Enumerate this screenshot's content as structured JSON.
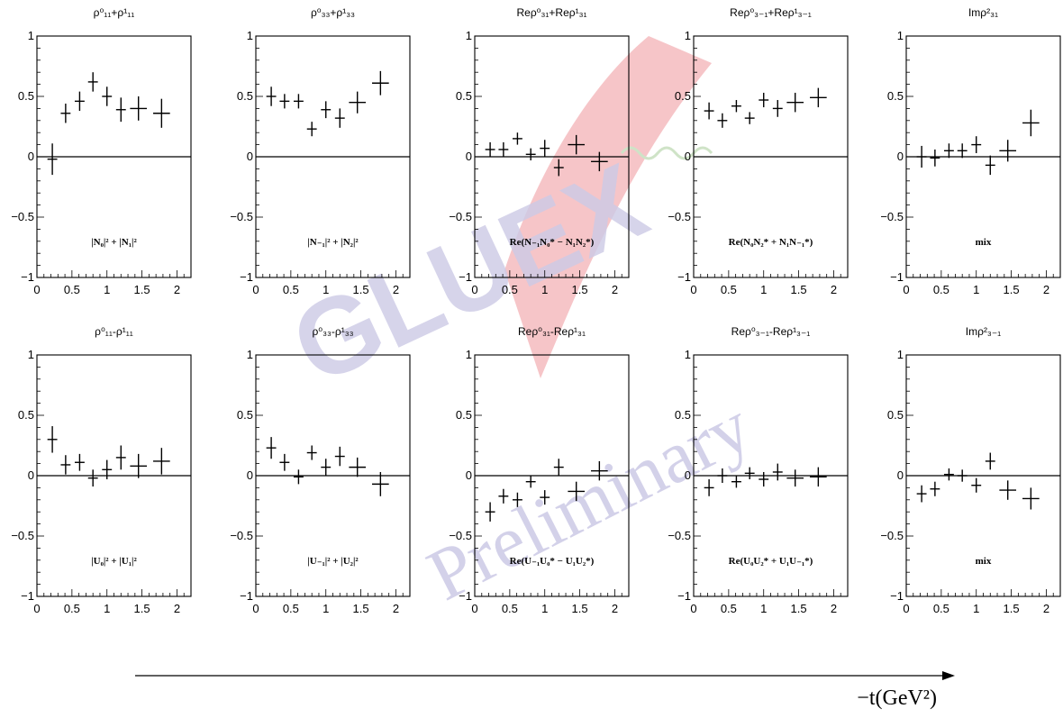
{
  "x_axis_label": "−t(GeV²)",
  "watermark": {
    "logo_text": "GLUEX",
    "text": "Preliminary"
  },
  "axis": {
    "xlim": [
      0,
      2.2
    ],
    "ylim": [
      -1,
      1
    ],
    "x_tick_labels": [
      "0",
      "0.5",
      "1",
      "1.5",
      "2"
    ],
    "y_tick_labels": [
      "−1",
      "−0.5",
      "0",
      "0.5",
      "1"
    ]
  },
  "chart_data": [
    {
      "type": "scatter",
      "title": "ρ⁰₁₁+ρ¹₁₁",
      "annotation": "|N₀|² + |N₁|²",
      "zero_line": true,
      "points": [
        {
          "x": 0.22,
          "y": -0.02,
          "xerr": 0.07,
          "yerr": 0.13
        },
        {
          "x": 0.41,
          "y": 0.36,
          "xerr": 0.07,
          "yerr": 0.08
        },
        {
          "x": 0.61,
          "y": 0.46,
          "xerr": 0.07,
          "yerr": 0.08
        },
        {
          "x": 0.8,
          "y": 0.62,
          "xerr": 0.07,
          "yerr": 0.08
        },
        {
          "x": 1.0,
          "y": 0.5,
          "xerr": 0.07,
          "yerr": 0.08
        },
        {
          "x": 1.2,
          "y": 0.39,
          "xerr": 0.07,
          "yerr": 0.1
        },
        {
          "x": 1.45,
          "y": 0.4,
          "xerr": 0.12,
          "yerr": 0.1
        },
        {
          "x": 1.78,
          "y": 0.36,
          "xerr": 0.12,
          "yerr": 0.12
        }
      ]
    },
    {
      "type": "scatter",
      "title": "ρ⁰₃₃+ρ¹₃₃",
      "annotation": "|N₋₁|² + |N₂|²",
      "zero_line": true,
      "points": [
        {
          "x": 0.22,
          "y": 0.5,
          "xerr": 0.07,
          "yerr": 0.08
        },
        {
          "x": 0.41,
          "y": 0.46,
          "xerr": 0.07,
          "yerr": 0.06
        },
        {
          "x": 0.61,
          "y": 0.46,
          "xerr": 0.07,
          "yerr": 0.06
        },
        {
          "x": 0.8,
          "y": 0.23,
          "xerr": 0.07,
          "yerr": 0.06
        },
        {
          "x": 1.0,
          "y": 0.39,
          "xerr": 0.07,
          "yerr": 0.07
        },
        {
          "x": 1.2,
          "y": 0.32,
          "xerr": 0.07,
          "yerr": 0.08
        },
        {
          "x": 1.45,
          "y": 0.45,
          "xerr": 0.12,
          "yerr": 0.09
        },
        {
          "x": 1.78,
          "y": 0.61,
          "xerr": 0.12,
          "yerr": 0.1
        }
      ]
    },
    {
      "type": "scatter",
      "title": "Reρ⁰₃₁+Reρ¹₃₁",
      "annotation": "Re(N₋₁N₀* − N₁N₂*)",
      "zero_line": true,
      "points": [
        {
          "x": 0.22,
          "y": 0.06,
          "xerr": 0.07,
          "yerr": 0.06
        },
        {
          "x": 0.41,
          "y": 0.06,
          "xerr": 0.07,
          "yerr": 0.06
        },
        {
          "x": 0.61,
          "y": 0.15,
          "xerr": 0.07,
          "yerr": 0.05
        },
        {
          "x": 0.8,
          "y": 0.02,
          "xerr": 0.07,
          "yerr": 0.05
        },
        {
          "x": 1.0,
          "y": 0.07,
          "xerr": 0.07,
          "yerr": 0.07
        },
        {
          "x": 1.2,
          "y": -0.09,
          "xerr": 0.07,
          "yerr": 0.07
        },
        {
          "x": 1.45,
          "y": 0.1,
          "xerr": 0.12,
          "yerr": 0.08
        },
        {
          "x": 1.78,
          "y": -0.04,
          "xerr": 0.12,
          "yerr": 0.08
        }
      ]
    },
    {
      "type": "scatter",
      "title": "Reρ⁰₃₋₁+Reρ¹₃₋₁",
      "annotation": "Re(N₀N₂* + N₁N₋₁*)",
      "zero_line": true,
      "points": [
        {
          "x": 0.22,
          "y": 0.38,
          "xerr": 0.07,
          "yerr": 0.07
        },
        {
          "x": 0.41,
          "y": 0.3,
          "xerr": 0.07,
          "yerr": 0.06
        },
        {
          "x": 0.61,
          "y": 0.42,
          "xerr": 0.07,
          "yerr": 0.05
        },
        {
          "x": 0.8,
          "y": 0.32,
          "xerr": 0.07,
          "yerr": 0.05
        },
        {
          "x": 1.0,
          "y": 0.47,
          "xerr": 0.07,
          "yerr": 0.06
        },
        {
          "x": 1.2,
          "y": 0.4,
          "xerr": 0.07,
          "yerr": 0.07
        },
        {
          "x": 1.45,
          "y": 0.45,
          "xerr": 0.12,
          "yerr": 0.08
        },
        {
          "x": 1.78,
          "y": 0.49,
          "xerr": 0.12,
          "yerr": 0.08
        }
      ]
    },
    {
      "type": "scatter",
      "title": "Imρ²₃₁",
      "annotation": "mix",
      "zero_line": true,
      "points": [
        {
          "x": 0.22,
          "y": 0.0,
          "xerr": 0.07,
          "yerr": 0.09
        },
        {
          "x": 0.41,
          "y": -0.01,
          "xerr": 0.07,
          "yerr": 0.07
        },
        {
          "x": 0.61,
          "y": 0.05,
          "xerr": 0.07,
          "yerr": 0.06
        },
        {
          "x": 0.8,
          "y": 0.05,
          "xerr": 0.07,
          "yerr": 0.06
        },
        {
          "x": 1.0,
          "y": 0.1,
          "xerr": 0.07,
          "yerr": 0.07
        },
        {
          "x": 1.2,
          "y": -0.07,
          "xerr": 0.07,
          "yerr": 0.08
        },
        {
          "x": 1.45,
          "y": 0.05,
          "xerr": 0.12,
          "yerr": 0.09
        },
        {
          "x": 1.78,
          "y": 0.28,
          "xerr": 0.12,
          "yerr": 0.11
        }
      ]
    },
    {
      "type": "scatter",
      "title": "ρ⁰₁₁-ρ¹₁₁",
      "annotation": "|U₀|² + |U₁|²",
      "zero_line": true,
      "points": [
        {
          "x": 0.22,
          "y": 0.3,
          "xerr": 0.07,
          "yerr": 0.11
        },
        {
          "x": 0.41,
          "y": 0.09,
          "xerr": 0.07,
          "yerr": 0.08
        },
        {
          "x": 0.61,
          "y": 0.11,
          "xerr": 0.07,
          "yerr": 0.07
        },
        {
          "x": 0.8,
          "y": -0.02,
          "xerr": 0.07,
          "yerr": 0.07
        },
        {
          "x": 1.0,
          "y": 0.05,
          "xerr": 0.07,
          "yerr": 0.08
        },
        {
          "x": 1.2,
          "y": 0.15,
          "xerr": 0.07,
          "yerr": 0.1
        },
        {
          "x": 1.45,
          "y": 0.08,
          "xerr": 0.12,
          "yerr": 0.1
        },
        {
          "x": 1.78,
          "y": 0.12,
          "xerr": 0.12,
          "yerr": 0.11
        }
      ]
    },
    {
      "type": "scatter",
      "title": "ρ⁰₃₃-ρ¹₃₃",
      "annotation": "|U₋₁|² + |U₂|²",
      "zero_line": true,
      "points": [
        {
          "x": 0.22,
          "y": 0.23,
          "xerr": 0.07,
          "yerr": 0.09
        },
        {
          "x": 0.41,
          "y": 0.11,
          "xerr": 0.07,
          "yerr": 0.07
        },
        {
          "x": 0.61,
          "y": -0.01,
          "xerr": 0.07,
          "yerr": 0.06
        },
        {
          "x": 0.8,
          "y": 0.19,
          "xerr": 0.07,
          "yerr": 0.06
        },
        {
          "x": 1.0,
          "y": 0.07,
          "xerr": 0.07,
          "yerr": 0.07
        },
        {
          "x": 1.2,
          "y": 0.16,
          "xerr": 0.07,
          "yerr": 0.08
        },
        {
          "x": 1.45,
          "y": 0.07,
          "xerr": 0.12,
          "yerr": 0.08
        },
        {
          "x": 1.78,
          "y": -0.07,
          "xerr": 0.12,
          "yerr": 0.1
        }
      ]
    },
    {
      "type": "scatter",
      "title": "Reρ⁰₃₁-Reρ¹₃₁",
      "annotation": "Re(U₋₁U₀* − U₁U₂*)",
      "zero_line": true,
      "points": [
        {
          "x": 0.22,
          "y": -0.3,
          "xerr": 0.07,
          "yerr": 0.08
        },
        {
          "x": 0.41,
          "y": -0.17,
          "xerr": 0.07,
          "yerr": 0.06
        },
        {
          "x": 0.61,
          "y": -0.2,
          "xerr": 0.07,
          "yerr": 0.06
        },
        {
          "x": 0.8,
          "y": -0.05,
          "xerr": 0.07,
          "yerr": 0.05
        },
        {
          "x": 1.0,
          "y": -0.18,
          "xerr": 0.07,
          "yerr": 0.06
        },
        {
          "x": 1.2,
          "y": 0.07,
          "xerr": 0.07,
          "yerr": 0.07
        },
        {
          "x": 1.45,
          "y": -0.13,
          "xerr": 0.12,
          "yerr": 0.08
        },
        {
          "x": 1.78,
          "y": 0.04,
          "xerr": 0.12,
          "yerr": 0.08
        }
      ]
    },
    {
      "type": "scatter",
      "title": "Reρ⁰₃₋₁-Reρ¹₃₋₁",
      "annotation": "Re(U₀U₂* + U₁U₋₁*)",
      "zero_line": true,
      "points": [
        {
          "x": 0.22,
          "y": -0.1,
          "xerr": 0.07,
          "yerr": 0.07
        },
        {
          "x": 0.41,
          "y": 0.0,
          "xerr": 0.07,
          "yerr": 0.06
        },
        {
          "x": 0.61,
          "y": -0.05,
          "xerr": 0.07,
          "yerr": 0.05
        },
        {
          "x": 0.8,
          "y": 0.02,
          "xerr": 0.07,
          "yerr": 0.05
        },
        {
          "x": 1.0,
          "y": -0.03,
          "xerr": 0.07,
          "yerr": 0.06
        },
        {
          "x": 1.2,
          "y": 0.03,
          "xerr": 0.07,
          "yerr": 0.07
        },
        {
          "x": 1.45,
          "y": -0.02,
          "xerr": 0.12,
          "yerr": 0.07
        },
        {
          "x": 1.78,
          "y": -0.01,
          "xerr": 0.12,
          "yerr": 0.08
        }
      ]
    },
    {
      "type": "scatter",
      "title": "Imρ²₃₋₁",
      "annotation": "mix",
      "zero_line": true,
      "points": [
        {
          "x": 0.22,
          "y": -0.15,
          "xerr": 0.07,
          "yerr": 0.07
        },
        {
          "x": 0.41,
          "y": -0.11,
          "xerr": 0.07,
          "yerr": 0.06
        },
        {
          "x": 0.61,
          "y": 0.01,
          "xerr": 0.07,
          "yerr": 0.05
        },
        {
          "x": 0.8,
          "y": 0.0,
          "xerr": 0.07,
          "yerr": 0.05
        },
        {
          "x": 1.0,
          "y": -0.08,
          "xerr": 0.07,
          "yerr": 0.06
        },
        {
          "x": 1.2,
          "y": 0.12,
          "xerr": 0.07,
          "yerr": 0.07
        },
        {
          "x": 1.45,
          "y": -0.12,
          "xerr": 0.12,
          "yerr": 0.08
        },
        {
          "x": 1.78,
          "y": -0.19,
          "xerr": 0.12,
          "yerr": 0.09
        }
      ]
    }
  ]
}
